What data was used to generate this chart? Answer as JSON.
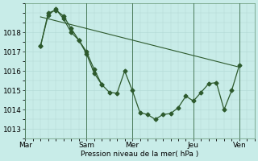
{
  "background_color": "#c8ece8",
  "grid_color": "#b0d8d4",
  "line_color": "#2d5a2d",
  "x_tick_labels": [
    "Mar",
    "Sam",
    "Mer",
    "Jeu",
    "Ven"
  ],
  "x_tick_positions": [
    0,
    48,
    84,
    132,
    168
  ],
  "ylabel": "Pression niveau de la mer( hPa )",
  "ylim": [
    1012.5,
    1019.5
  ],
  "yticks": [
    1013,
    1014,
    1015,
    1016,
    1017,
    1018
  ],
  "straight_line_x": [
    12,
    168
  ],
  "straight_line_y": [
    1018.8,
    1016.2
  ],
  "main_line_x": [
    12,
    18,
    24,
    30,
    36,
    42,
    48,
    54,
    60,
    66,
    72,
    78,
    84,
    90,
    96,
    102,
    108,
    114,
    120,
    126,
    132,
    138,
    144,
    150,
    156,
    162,
    168
  ],
  "main_line_y": [
    1017.3,
    1018.9,
    1019.2,
    1018.7,
    1018.0,
    1017.6,
    1017.0,
    1016.1,
    1015.3,
    1014.9,
    1014.85,
    1016.0,
    1015.0,
    1013.85,
    1013.75,
    1013.5,
    1013.75,
    1013.8,
    1014.1,
    1014.7,
    1014.45,
    1014.9,
    1015.35,
    1015.4,
    1014.0,
    1015.0,
    1016.3
  ],
  "second_line_x": [
    12,
    18,
    24,
    30,
    36,
    42,
    48,
    54,
    60
  ],
  "second_line_y": [
    1017.3,
    1019.0,
    1019.15,
    1018.85,
    1018.2,
    1017.6,
    1016.9,
    1015.9,
    1015.3
  ]
}
